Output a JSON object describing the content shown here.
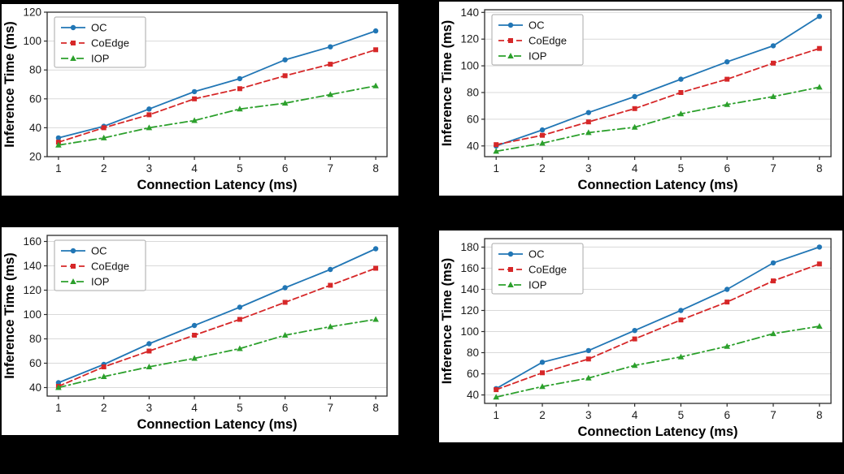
{
  "page_background": "#000000",
  "colors": {
    "oc": "#2176b5",
    "coedge": "#d62728",
    "iop": "#2ca02c",
    "grid": "#d9d9d9",
    "axis": "#2b2b2b",
    "tick_text": "#1a1a1a",
    "legend_border": "#aaaaaa"
  },
  "chart_data": [
    {
      "type": "line",
      "xlabel": "Connection Latency (ms)",
      "ylabel": "Inference Time (ms)",
      "x": [
        1,
        2,
        3,
        4,
        5,
        6,
        7,
        8
      ],
      "xlim": [
        0.75,
        8.25
      ],
      "ylim": [
        20,
        120
      ],
      "yticks": [
        20,
        40,
        60,
        80,
        100,
        120
      ],
      "grid": "horizontal",
      "legend_position": "upper-left",
      "series": [
        {
          "name": "OC",
          "color": "#2176b5",
          "line_style": "solid",
          "marker": "circle",
          "values": [
            33,
            41,
            53,
            65,
            74,
            87,
            96,
            107
          ]
        },
        {
          "name": "CoEdge",
          "color": "#d62728",
          "line_style": "dashed",
          "marker": "square",
          "values": [
            30,
            40,
            49,
            60,
            67,
            76,
            84,
            94
          ]
        },
        {
          "name": "IOP",
          "color": "#2ca02c",
          "line_style": "dashdot",
          "marker": "triangle",
          "values": [
            28,
            33,
            40,
            45,
            53,
            57,
            63,
            69
          ]
        }
      ]
    },
    {
      "type": "line",
      "xlabel": "Connection Latency (ms)",
      "ylabel": "Inference Time (ms)",
      "x": [
        1,
        2,
        3,
        4,
        5,
        6,
        7,
        8
      ],
      "xlim": [
        0.75,
        8.25
      ],
      "ylim": [
        32,
        142
      ],
      "yticks": [
        40,
        60,
        80,
        100,
        120,
        140
      ],
      "grid": "horizontal",
      "legend_position": "upper-left",
      "series": [
        {
          "name": "OC",
          "color": "#2176b5",
          "line_style": "solid",
          "marker": "circle",
          "values": [
            40,
            52,
            65,
            77,
            90,
            103,
            115,
            137
          ]
        },
        {
          "name": "CoEdge",
          "color": "#d62728",
          "line_style": "dashed",
          "marker": "square",
          "values": [
            41,
            48,
            58,
            68,
            80,
            90,
            102,
            113
          ]
        },
        {
          "name": "IOP",
          "color": "#2ca02c",
          "line_style": "dashdot",
          "marker": "triangle",
          "values": [
            36,
            42,
            50,
            54,
            64,
            71,
            77,
            84
          ]
        }
      ]
    },
    {
      "type": "line",
      "xlabel": "Connection Latency (ms)",
      "ylabel": "Inference Time (ms)",
      "x": [
        1,
        2,
        3,
        4,
        5,
        6,
        7,
        8
      ],
      "xlim": [
        0.75,
        8.25
      ],
      "ylim": [
        33,
        165
      ],
      "yticks": [
        40,
        60,
        80,
        100,
        120,
        140,
        160
      ],
      "grid": "horizontal",
      "legend_position": "upper-left",
      "series": [
        {
          "name": "OC",
          "color": "#2176b5",
          "line_style": "solid",
          "marker": "circle",
          "values": [
            44,
            59,
            76,
            91,
            106,
            122,
            137,
            154
          ]
        },
        {
          "name": "CoEdge",
          "color": "#d62728",
          "line_style": "dashed",
          "marker": "square",
          "values": [
            41,
            57,
            70,
            83,
            96,
            110,
            124,
            138
          ]
        },
        {
          "name": "IOP",
          "color": "#2ca02c",
          "line_style": "dashdot",
          "marker": "triangle",
          "values": [
            40,
            49,
            57,
            64,
            72,
            83,
            90,
            96
          ]
        }
      ]
    },
    {
      "type": "line",
      "xlabel": "Connection Latency (ms)",
      "ylabel": "Inference Time (ms)",
      "x": [
        1,
        2,
        3,
        4,
        5,
        6,
        7,
        8
      ],
      "xlim": [
        0.75,
        8.25
      ],
      "ylim": [
        32,
        188
      ],
      "yticks": [
        40,
        60,
        80,
        100,
        120,
        140,
        160,
        180
      ],
      "grid": "horizontal",
      "legend_position": "upper-left",
      "series": [
        {
          "name": "OC",
          "color": "#2176b5",
          "line_style": "solid",
          "marker": "circle",
          "values": [
            46,
            71,
            82,
            101,
            120,
            140,
            165,
            180
          ]
        },
        {
          "name": "CoEdge",
          "color": "#d62728",
          "line_style": "dashed",
          "marker": "square",
          "values": [
            45,
            61,
            74,
            93,
            111,
            128,
            148,
            164
          ]
        },
        {
          "name": "IOP",
          "color": "#2ca02c",
          "line_style": "dashdot",
          "marker": "triangle",
          "values": [
            38,
            48,
            56,
            68,
            76,
            86,
            98,
            105
          ]
        }
      ]
    }
  ]
}
